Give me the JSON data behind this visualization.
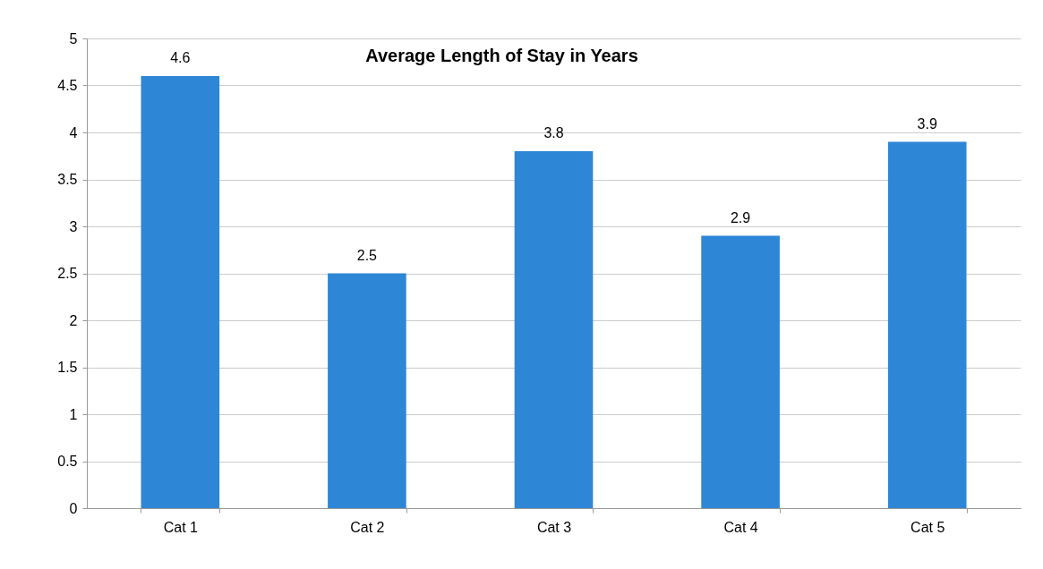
{
  "chart_data": {
    "type": "bar",
    "title": "Average Length of Stay in Years",
    "categories": [
      "Cat 1",
      "Cat 2",
      "Cat 3",
      "Cat 4",
      "Cat 5"
    ],
    "values": [
      4.6,
      2.5,
      3.8,
      2.9,
      3.9
    ],
    "color": "#2e86d6",
    "ylim": [
      0,
      5
    ],
    "yticks": [
      0,
      0.5,
      1,
      1.5,
      2,
      2.5,
      3,
      3.5,
      4,
      4.5,
      5
    ],
    "grid": "y",
    "data_labels": true
  }
}
